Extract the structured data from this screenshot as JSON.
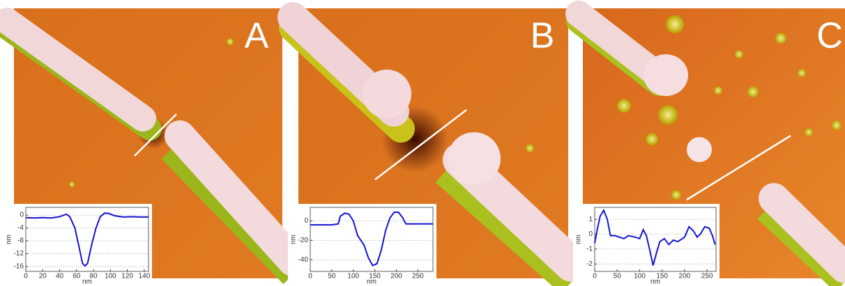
{
  "panel_labels": [
    "A",
    "B",
    "C"
  ],
  "chart_data": [
    {
      "type": "line",
      "xlabel": "nm",
      "ylabel": "nm",
      "color": "#1414d2",
      "grid": true,
      "xlim": [
        0,
        145
      ],
      "xticks": [
        0,
        20,
        40,
        60,
        80,
        100,
        120,
        140
      ],
      "ylim": [
        -17.5,
        2.4
      ],
      "yticks": [
        0,
        -4,
        -8,
        -12,
        -16
      ],
      "x": [
        0,
        10,
        20,
        30,
        40,
        48,
        52,
        58,
        63,
        67,
        70,
        73,
        78,
        83,
        88,
        93,
        98,
        105,
        115,
        125,
        135,
        145
      ],
      "series": [
        {
          "values": [
            -0.8,
            -0.9,
            -0.8,
            -0.9,
            -0.5,
            0.3,
            -0.5,
            -4,
            -10,
            -15,
            -15.8,
            -15,
            -9,
            -4,
            -0.5,
            0.6,
            0.5,
            -0.2,
            -0.6,
            -0.5,
            -0.6,
            -0.6
          ]
        }
      ]
    },
    {
      "type": "line",
      "xlabel": "nm",
      "ylabel": "nm",
      "color": "#1414d2",
      "grid": true,
      "xlim": [
        0,
        285
      ],
      "xticks": [
        0,
        50,
        100,
        150,
        200,
        250
      ],
      "ylim": [
        -52,
        14
      ],
      "yticks": [
        0,
        -20,
        -40
      ],
      "x": [
        0,
        20,
        50,
        65,
        70,
        80,
        90,
        100,
        110,
        125,
        135,
        145,
        155,
        165,
        175,
        185,
        195,
        205,
        215,
        222,
        240,
        285
      ],
      "series": [
        {
          "values": [
            -4,
            -4,
            -4,
            -3,
            5,
            8,
            7,
            0,
            -15,
            -25,
            -38,
            -46,
            -44,
            -30,
            -10,
            3,
            9,
            9,
            3,
            -3,
            -3,
            -3
          ]
        }
      ]
    },
    {
      "type": "line",
      "xlabel": "nm",
      "ylabel": "nm",
      "color": "#1414d2",
      "grid": true,
      "xlim": [
        0,
        270
      ],
      "xticks": [
        0,
        50,
        100,
        150,
        200,
        250
      ],
      "ylim": [
        -2.5,
        1.8
      ],
      "yticks": [
        1,
        0,
        -1,
        -2
      ],
      "x": [
        0,
        5,
        12,
        20,
        28,
        35,
        45,
        55,
        65,
        75,
        90,
        100,
        108,
        115,
        122,
        130,
        138,
        145,
        155,
        165,
        175,
        185,
        200,
        210,
        220,
        228,
        235,
        245,
        255,
        262,
        268
      ],
      "series": [
        {
          "values": [
            -0.6,
            0.2,
            1.2,
            1.6,
            1.0,
            -0.1,
            -0.1,
            -0.2,
            -0.3,
            -0.1,
            -0.2,
            -0.3,
            0.3,
            -0.1,
            -1.0,
            -2.1,
            -1.2,
            -0.5,
            -0.3,
            -0.7,
            -0.4,
            -0.5,
            -0.2,
            0.5,
            0.2,
            -0.2,
            0,
            0.5,
            0.4,
            -0.1,
            -0.7
          ]
        }
      ]
    }
  ]
}
